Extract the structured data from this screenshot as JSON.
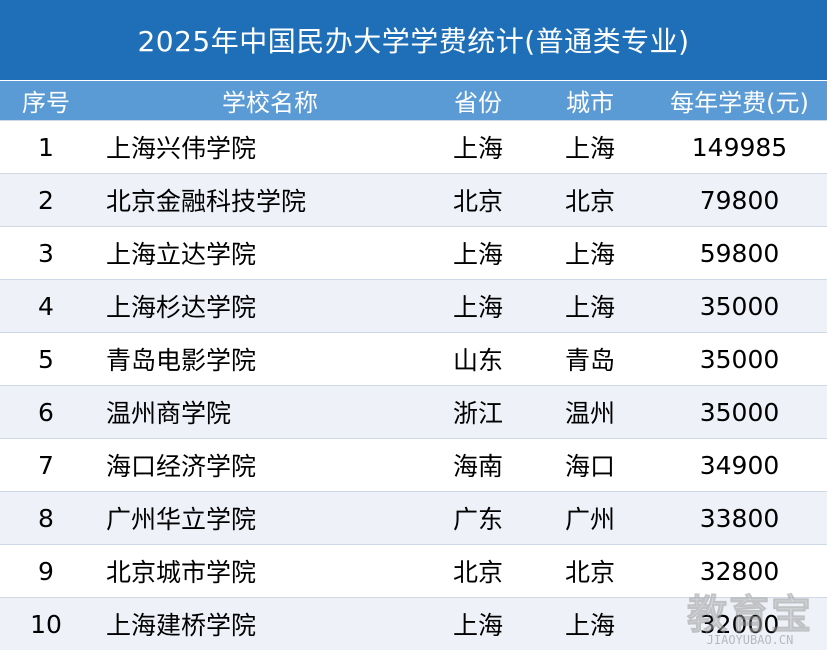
{
  "title": "2025年中国民办大学学费统计(普通类专业)",
  "colors": {
    "title_bg": "#1f6fb8",
    "header_bg": "#5b9bd5",
    "alt_row_bg": "#eef2f8"
  },
  "headers": {
    "no": "序号",
    "name": "学校名称",
    "province": "省份",
    "city": "城市",
    "fee": "每年学费(元)"
  },
  "rows": [
    {
      "no": "1",
      "name": "上海兴伟学院",
      "province": "上海",
      "city": "上海",
      "fee": "149985"
    },
    {
      "no": "2",
      "name": "北京金融科技学院",
      "province": "北京",
      "city": "北京",
      "fee": "79800"
    },
    {
      "no": "3",
      "name": "上海立达学院",
      "province": "上海",
      "city": "上海",
      "fee": "59800"
    },
    {
      "no": "4",
      "name": "上海杉达学院",
      "province": "上海",
      "city": "上海",
      "fee": "35000"
    },
    {
      "no": "5",
      "name": "青岛电影学院",
      "province": "山东",
      "city": "青岛",
      "fee": "35000"
    },
    {
      "no": "6",
      "name": "温州商学院",
      "province": "浙江",
      "city": "温州",
      "fee": "35000"
    },
    {
      "no": "7",
      "name": "海口经济学院",
      "province": "海南",
      "city": "海口",
      "fee": "34900"
    },
    {
      "no": "8",
      "name": "广州华立学院",
      "province": "广东",
      "city": "广州",
      "fee": "33800"
    },
    {
      "no": "9",
      "name": "北京城市学院",
      "province": "北京",
      "city": "北京",
      "fee": "32800"
    },
    {
      "no": "10",
      "name": "上海建桥学院",
      "province": "上海",
      "city": "上海",
      "fee": "32000"
    }
  ],
  "watermark": {
    "logo": "教育宝",
    "domain": "JIAOYUBAO.CN"
  }
}
